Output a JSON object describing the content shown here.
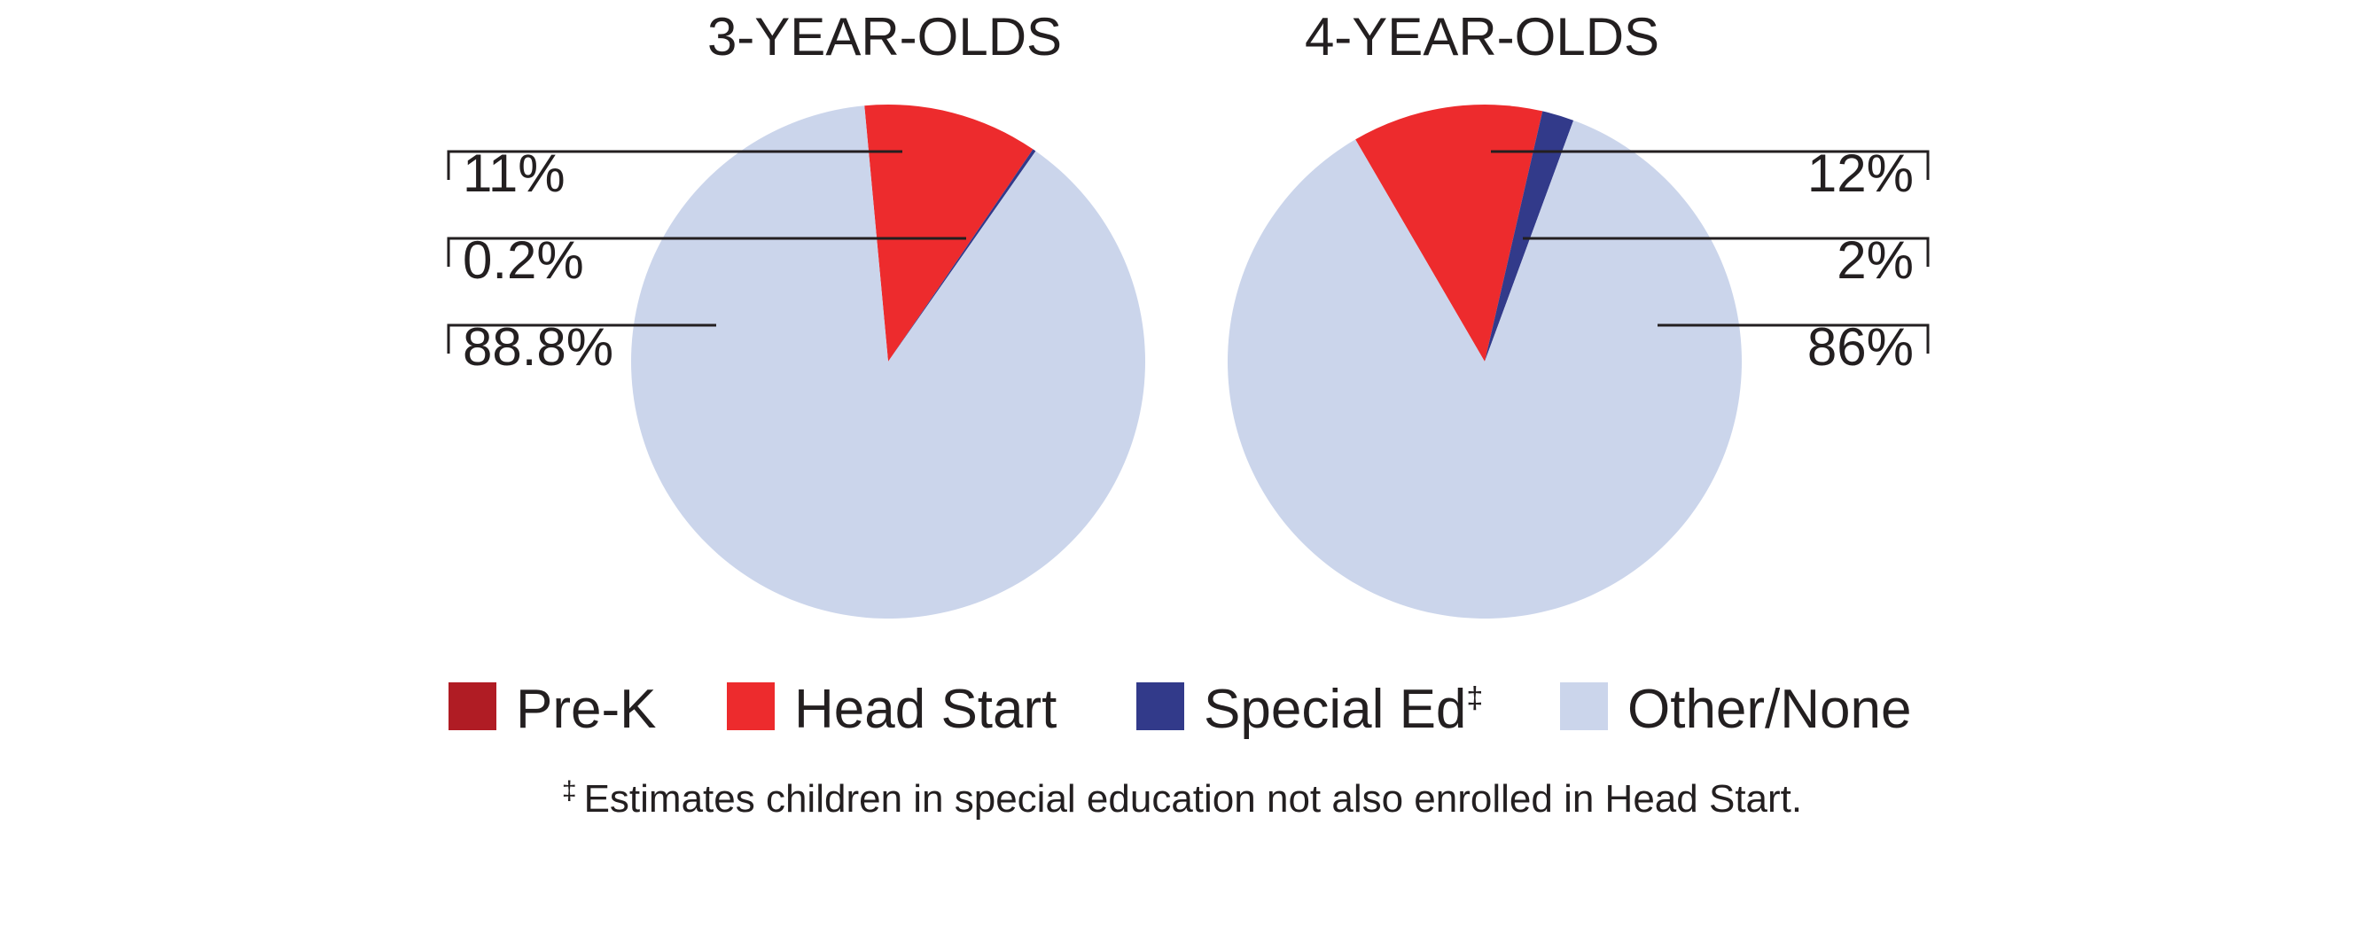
{
  "colors": {
    "Pre-K": "#b01c24",
    "Head Start": "#ed2b2d",
    "Special Ed‡": "#323a8a",
    "Other/None": "#cbd5eb"
  },
  "chart_data": [
    {
      "type": "pie",
      "title": "3-YEAR-OLDS",
      "categories": [
        "Head Start",
        "Special Ed‡",
        "Other/None"
      ],
      "values": [
        11,
        0.2,
        88.8
      ],
      "labels": [
        "11%",
        "0.2%",
        "88.8%"
      ]
    },
    {
      "type": "pie",
      "title": "4-YEAR-OLDS",
      "categories": [
        "Head Start",
        "Special Ed‡",
        "Other/None"
      ],
      "values": [
        12,
        2,
        86
      ],
      "labels": [
        "12%",
        "2%",
        "86%"
      ]
    }
  ],
  "legend": [
    {
      "label": "Pre-K",
      "color": "#b01c24"
    },
    {
      "label": "Head Start",
      "color": "#ed2b2d"
    },
    {
      "label": "Special Ed‡",
      "color": "#323a8a"
    },
    {
      "label": "Other/None",
      "color": "#cbd5eb"
    }
  ],
  "footnote": {
    "marker": "‡",
    "text": "Estimates children in special education not also enrolled in Head Start."
  }
}
